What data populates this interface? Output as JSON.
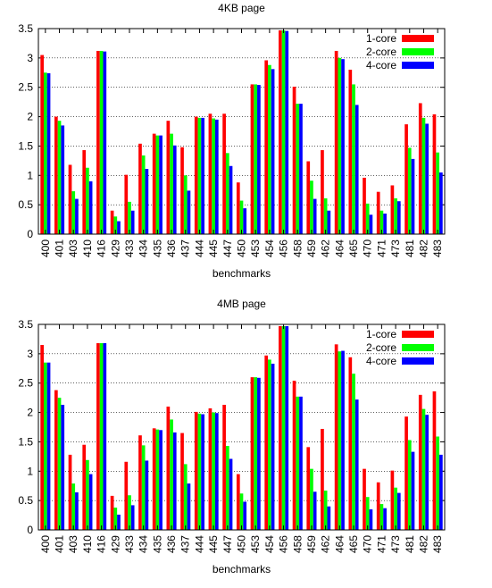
{
  "colors": {
    "1-core": "#ff0000",
    "2-core": "#00ff00",
    "4-core": "#0000ff",
    "axis": "#000000",
    "grid": "#000000"
  },
  "chart_data": [
    {
      "type": "bar",
      "title": "4KB page",
      "xlabel": "benchmarks",
      "ylabel": "",
      "ylim": [
        0,
        3.5
      ],
      "yticks": [
        "0",
        "0.5",
        "1",
        "1.5",
        "2",
        "2.5",
        "3",
        "3.5"
      ],
      "grid": "horizontal dotted",
      "legend_position": "top-right",
      "categories": [
        "400",
        "401",
        "403",
        "410",
        "416",
        "429",
        "433",
        "434",
        "435",
        "436",
        "437",
        "444",
        "445",
        "447",
        "450",
        "453",
        "454",
        "456",
        "458",
        "459",
        "462",
        "464",
        "465",
        "470",
        "471",
        "473",
        "481",
        "482",
        "483"
      ],
      "series": [
        {
          "name": "1-core",
          "values": [
            3.05,
            2.0,
            1.18,
            1.43,
            3.12,
            0.4,
            1.01,
            1.54,
            1.71,
            1.93,
            1.48,
            2.0,
            2.05,
            2.05,
            0.88,
            2.55,
            2.96,
            3.47,
            2.51,
            1.24,
            1.43,
            3.12,
            2.8,
            0.96,
            0.72,
            0.83,
            1.87,
            2.23,
            2.04
          ]
        },
        {
          "name": "2-core",
          "values": [
            2.75,
            1.93,
            0.73,
            1.13,
            3.12,
            0.3,
            0.55,
            1.34,
            1.68,
            1.71,
            1.0,
            1.98,
            1.97,
            1.38,
            0.57,
            2.55,
            2.88,
            3.47,
            2.22,
            0.91,
            0.61,
            3.0,
            2.55,
            0.52,
            0.4,
            0.61,
            1.47,
            1.98,
            1.39
          ]
        },
        {
          "name": "4-core",
          "values": [
            2.74,
            1.85,
            0.6,
            0.9,
            3.11,
            0.22,
            0.4,
            1.11,
            1.68,
            1.51,
            0.74,
            1.98,
            1.95,
            1.16,
            0.44,
            2.54,
            2.81,
            3.46,
            2.22,
            0.6,
            0.4,
            2.98,
            2.2,
            0.33,
            0.35,
            0.56,
            1.28,
            1.88,
            1.05
          ]
        }
      ]
    },
    {
      "type": "bar",
      "title": "4MB page",
      "xlabel": "benchmarks",
      "ylabel": "",
      "ylim": [
        0,
        3.5
      ],
      "yticks": [
        "0",
        "0.5",
        "1",
        "1.5",
        "2",
        "2.5",
        "3",
        "3.5"
      ],
      "grid": "horizontal dotted",
      "legend_position": "top-right",
      "categories": [
        "400",
        "401",
        "403",
        "410",
        "416",
        "429",
        "433",
        "434",
        "435",
        "436",
        "437",
        "444",
        "445",
        "447",
        "450",
        "453",
        "454",
        "456",
        "458",
        "459",
        "462",
        "464",
        "465",
        "470",
        "471",
        "473",
        "481",
        "482",
        "483"
      ],
      "series": [
        {
          "name": "1-core",
          "values": [
            3.15,
            2.38,
            1.28,
            1.45,
            3.18,
            0.58,
            1.16,
            1.61,
            1.73,
            2.1,
            1.65,
            2.01,
            2.07,
            2.13,
            0.95,
            2.6,
            2.97,
            3.47,
            2.54,
            1.41,
            1.72,
            3.16,
            2.94,
            1.04,
            0.81,
            1.01,
            1.93,
            2.3,
            2.36
          ]
        },
        {
          "name": "2-core",
          "values": [
            2.85,
            2.25,
            0.79,
            1.19,
            3.18,
            0.38,
            0.59,
            1.44,
            1.71,
            1.88,
            1.12,
            1.98,
            2.0,
            1.43,
            0.62,
            2.6,
            2.9,
            3.47,
            2.27,
            1.04,
            0.67,
            3.04,
            2.66,
            0.56,
            0.44,
            0.72,
            1.53,
            2.06,
            1.59
          ]
        },
        {
          "name": "4-core",
          "values": [
            2.85,
            2.13,
            0.64,
            0.95,
            3.18,
            0.26,
            0.42,
            1.18,
            1.7,
            1.66,
            0.79,
            1.97,
            1.99,
            1.21,
            0.48,
            2.59,
            2.83,
            3.47,
            2.27,
            0.65,
            0.4,
            3.05,
            2.22,
            0.35,
            0.37,
            0.63,
            1.33,
            1.96,
            1.28
          ]
        }
      ]
    }
  ]
}
